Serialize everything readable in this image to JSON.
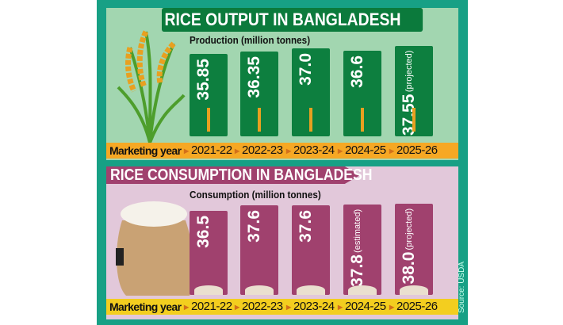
{
  "colors": {
    "frame": "#17a085",
    "top_bg": "#a2d6b0",
    "bottom_bg": "#e2c8da",
    "production_bar": "#0d7f3f",
    "consumption_bar": "#a0416e",
    "top_strip": "#f6a824",
    "bottom_strip": "#f3ce1f"
  },
  "icons": {
    "top": "rice-plant-icon",
    "bottom": "rice-sack-icon",
    "bar_top": "rice-stalk-icon",
    "bar_bottom": "rice-grain-pile-icon"
  },
  "source": "Source: USDA",
  "chart_data": [
    {
      "type": "bar",
      "title": "RICE OUTPUT IN BANGLADESH",
      "ylabel": "Production (million tonnes)",
      "xlabel": "Marketing year",
      "categories": [
        "2021-22",
        "2022-23",
        "2023-24",
        "2024-25",
        "2025-26"
      ],
      "values": [
        35.85,
        36.35,
        37.0,
        36.6,
        37.55
      ],
      "value_labels": [
        "35.85",
        "36.35",
        "37.0",
        "36.6",
        "37.55"
      ],
      "notes": [
        "",
        "",
        "",
        "",
        "(projected)"
      ]
    },
    {
      "type": "bar",
      "title": "RICE CONSUMPTION IN BANGLADESH",
      "ylabel": "Consumption (million tonnes)",
      "xlabel": "Marketing year",
      "categories": [
        "2021-22",
        "2022-23",
        "2023-24",
        "2024-25",
        "2025-26"
      ],
      "values": [
        36.5,
        37.6,
        37.6,
        37.8,
        38.0
      ],
      "value_labels": [
        "36.5",
        "37.6",
        "37.6",
        "37.8",
        "38.0"
      ],
      "notes": [
        "",
        "",
        "",
        "(estimated)",
        "(projected)"
      ]
    }
  ]
}
